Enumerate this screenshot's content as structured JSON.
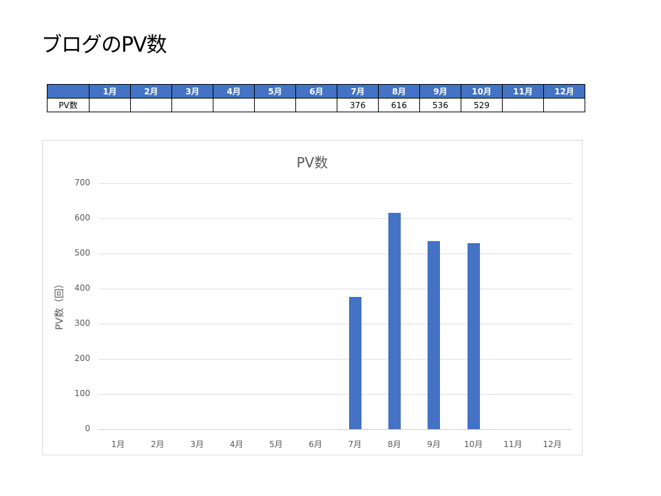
{
  "page": {
    "title": "ブログのPV数"
  },
  "table": {
    "corner": "",
    "headers": [
      "1月",
      "2月",
      "3月",
      "4月",
      "5月",
      "6月",
      "7月",
      "8月",
      "9月",
      "10月",
      "11月",
      "12月"
    ],
    "row_label": "PV数",
    "values": [
      "",
      "",
      "",
      "",
      "",
      "",
      "376",
      "616",
      "536",
      "529",
      "",
      ""
    ],
    "header_bg": "#4472c4"
  },
  "chart_data": {
    "type": "bar",
    "title": "PV数",
    "xlabel": "",
    "ylabel": "PV数（回）",
    "categories": [
      "1月",
      "2月",
      "3月",
      "4月",
      "5月",
      "6月",
      "7月",
      "8月",
      "9月",
      "10月",
      "11月",
      "12月"
    ],
    "values": [
      null,
      null,
      null,
      null,
      null,
      null,
      376,
      616,
      536,
      529,
      null,
      null
    ],
    "ylim": [
      0,
      700
    ],
    "yticks": [
      0,
      100,
      200,
      300,
      400,
      500,
      600,
      700
    ],
    "grid": true,
    "legend": "none",
    "bar_color": "#4472c4"
  }
}
